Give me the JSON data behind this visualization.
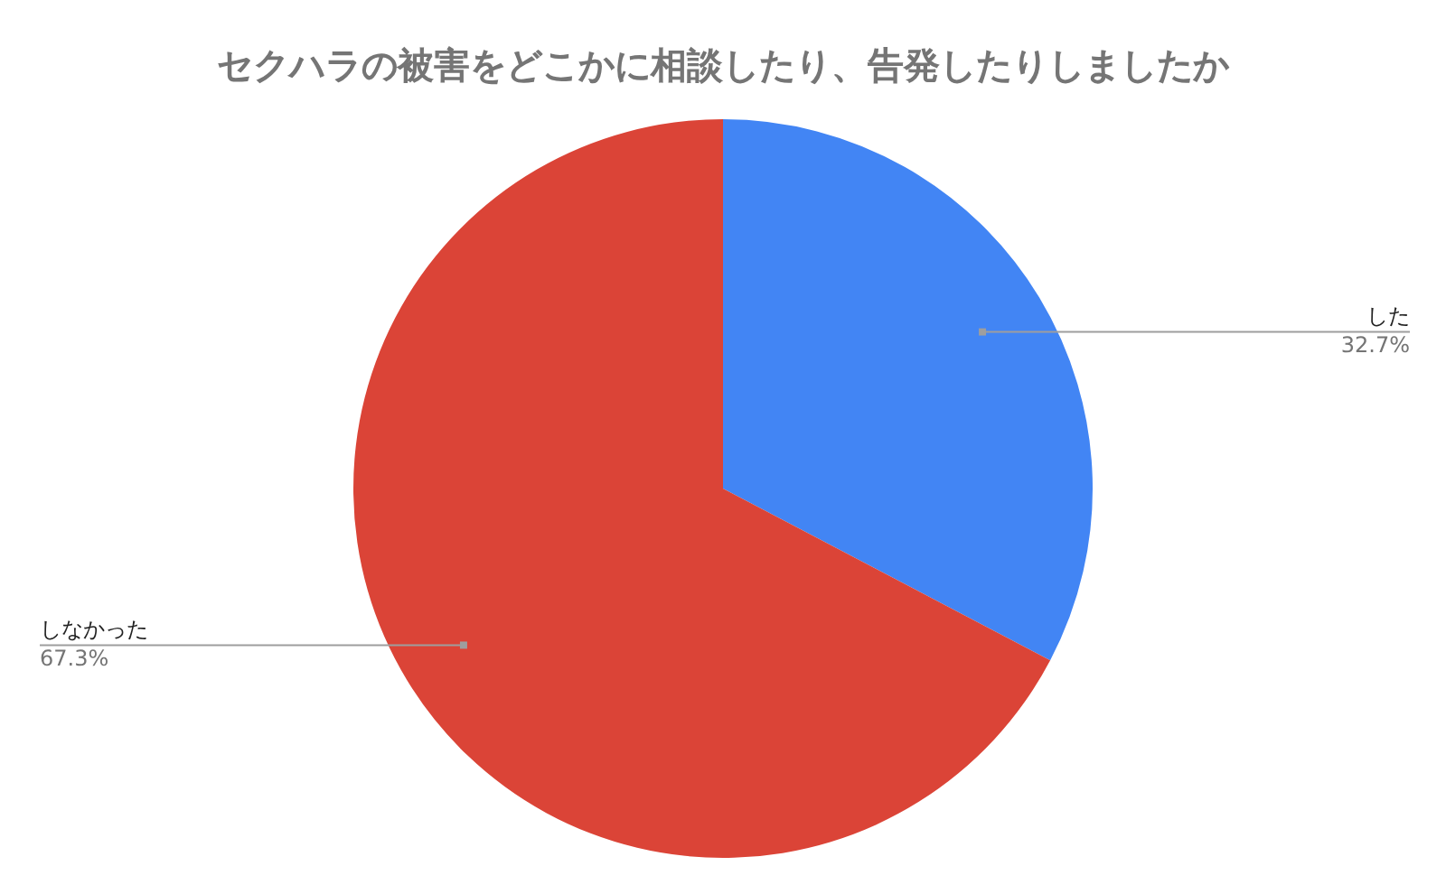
{
  "chart_data": {
    "type": "pie",
    "title": "セクハラの被害をどこかに相談したり、告発したりしましたか",
    "categories": [
      "した",
      "しなかった"
    ],
    "values": [
      32.7,
      67.3
    ],
    "colors": [
      "#4285f4",
      "#db4437"
    ],
    "value_labels": [
      "32.7%",
      "67.3%"
    ],
    "legend": false
  }
}
